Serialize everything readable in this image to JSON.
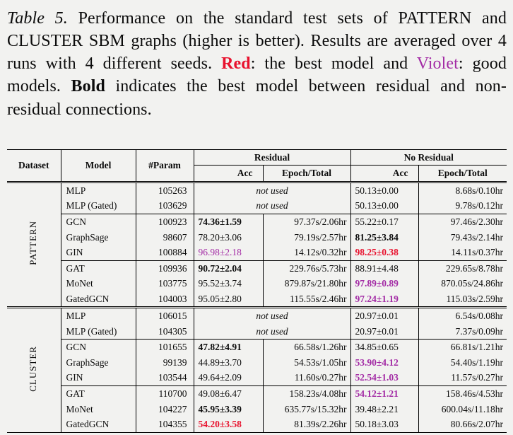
{
  "page": {
    "bg": "#f2f2f0"
  },
  "colors": {
    "red": "#e8112d",
    "violet": "#a32ba5"
  },
  "caption": {
    "segments": [
      {
        "text": "Table 5.",
        "style": "italic"
      },
      {
        "text": " Performance on the standard test sets of PATTERN and CLUSTER SBM graphs (higher is better). Results are averaged over 4 runs with 4 different seeds. ",
        "style": "normal"
      },
      {
        "text": "Red",
        "style": "red-bold"
      },
      {
        "text": ": the best model and ",
        "style": "normal"
      },
      {
        "text": "Violet",
        "style": "violet"
      },
      {
        "text": ": good models. ",
        "style": "normal"
      },
      {
        "text": "Bold",
        "style": "bold"
      },
      {
        "text": " indicates the best model between residual and non-residual connections.",
        "style": "normal"
      }
    ]
  },
  "table": {
    "headers": {
      "dataset": "Dataset",
      "model": "Model",
      "param": "#Param",
      "residual": "Residual",
      "no_residual": "No Residual",
      "acc": "Acc",
      "epoch_total": "Epoch/Total"
    },
    "not_used_label": "not used",
    "groups": [
      {
        "dataset": "PATTERN",
        "blocks": [
          [
            {
              "model": "MLP",
              "param": "105263",
              "not_used": true,
              "nores_acc": "50.13±0.00",
              "nores_acc_style": "normal",
              "nores_time": "8.68s/0.10hr"
            },
            {
              "model": "MLP (Gated)",
              "param": "103629",
              "not_used": true,
              "nores_acc": "50.13±0.00",
              "nores_acc_style": "normal",
              "nores_time": "9.78s/0.12hr"
            }
          ],
          [
            {
              "model": "GCN",
              "param": "100923",
              "res_acc": "74.36±1.59",
              "res_acc_style": "bold",
              "res_time": "97.37s/2.06hr",
              "nores_acc": "55.22±0.17",
              "nores_acc_style": "normal",
              "nores_time": "97.46s/2.30hr"
            },
            {
              "model": "GraphSage",
              "param": "98607",
              "res_acc": "78.20±3.06",
              "res_acc_style": "normal",
              "res_time": "79.19s/2.57hr",
              "nores_acc": "81.25±3.84",
              "nores_acc_style": "bold",
              "nores_time": "79.43s/2.14hr"
            },
            {
              "model": "GIN",
              "param": "100884",
              "res_acc": "96.98±2.18",
              "res_acc_style": "violet",
              "res_time": "14.12s/0.32hr",
              "nores_acc": "98.25±0.38",
              "nores_acc_style": "red-bold",
              "nores_time": "14.11s/0.37hr"
            }
          ],
          [
            {
              "model": "GAT",
              "param": "109936",
              "res_acc": "90.72±2.04",
              "res_acc_style": "bold",
              "res_time": "229.76s/5.73hr",
              "nores_acc": "88.91±4.48",
              "nores_acc_style": "normal",
              "nores_time": "229.65s/8.78hr"
            },
            {
              "model": "MoNet",
              "param": "103775",
              "res_acc": "95.52±3.74",
              "res_acc_style": "normal",
              "res_time": "879.87s/21.80hr",
              "nores_acc": "97.89±0.89",
              "nores_acc_style": "violet-bold",
              "nores_time": "870.05s/24.86hr"
            },
            {
              "model": "GatedGCN",
              "param": "104003",
              "res_acc": "95.05±2.80",
              "res_acc_style": "normal",
              "res_time": "115.55s/2.46hr",
              "nores_acc": "97.24±1.19",
              "nores_acc_style": "violet-bold",
              "nores_time": "115.03s/2.59hr"
            }
          ]
        ]
      },
      {
        "dataset": "CLUSTER",
        "blocks": [
          [
            {
              "model": "MLP",
              "param": "106015",
              "not_used": true,
              "nores_acc": "20.97±0.01",
              "nores_acc_style": "normal",
              "nores_time": "6.54s/0.08hr"
            },
            {
              "model": "MLP (Gated)",
              "param": "104305",
              "not_used": true,
              "nores_acc": "20.97±0.01",
              "nores_acc_style": "normal",
              "nores_time": "7.37s/0.09hr"
            }
          ],
          [
            {
              "model": "GCN",
              "param": "101655",
              "res_acc": "47.82±4.91",
              "res_acc_style": "bold",
              "res_time": "66.58s/1.26hr",
              "nores_acc": "34.85±0.65",
              "nores_acc_style": "normal",
              "nores_time": "66.81s/1.21hr"
            },
            {
              "model": "GraphSage",
              "param": "99139",
              "res_acc": "44.89±3.70",
              "res_acc_style": "normal",
              "res_time": "54.53s/1.05hr",
              "nores_acc": "53.90±4.12",
              "nores_acc_style": "violet-bold",
              "nores_time": "54.40s/1.19hr"
            },
            {
              "model": "GIN",
              "param": "103544",
              "res_acc": "49.64±2.09",
              "res_acc_style": "normal",
              "res_time": "11.60s/0.27hr",
              "nores_acc": "52.54±1.03",
              "nores_acc_style": "violet-bold",
              "nores_time": "11.57s/0.27hr"
            }
          ],
          [
            {
              "model": "GAT",
              "param": "110700",
              "res_acc": "49.08±6.47",
              "res_acc_style": "normal",
              "res_time": "158.23s/4.08hr",
              "nores_acc": "54.12±1.21",
              "nores_acc_style": "violet-bold",
              "nores_time": "158.46s/4.53hr"
            },
            {
              "model": "MoNet",
              "param": "104227",
              "res_acc": "45.95±3.39",
              "res_acc_style": "bold",
              "res_time": "635.77s/15.32hr",
              "nores_acc": "39.48±2.21",
              "nores_acc_style": "normal",
              "nores_time": "600.04s/11.18hr"
            },
            {
              "model": "GatedGCN",
              "param": "104355",
              "res_acc": "54.20±3.58",
              "res_acc_style": "red-bold",
              "res_time": "81.39s/2.26hr",
              "nores_acc": "50.18±3.03",
              "nores_acc_style": "normal",
              "nores_time": "80.66s/2.07hr"
            }
          ]
        ]
      }
    ]
  }
}
